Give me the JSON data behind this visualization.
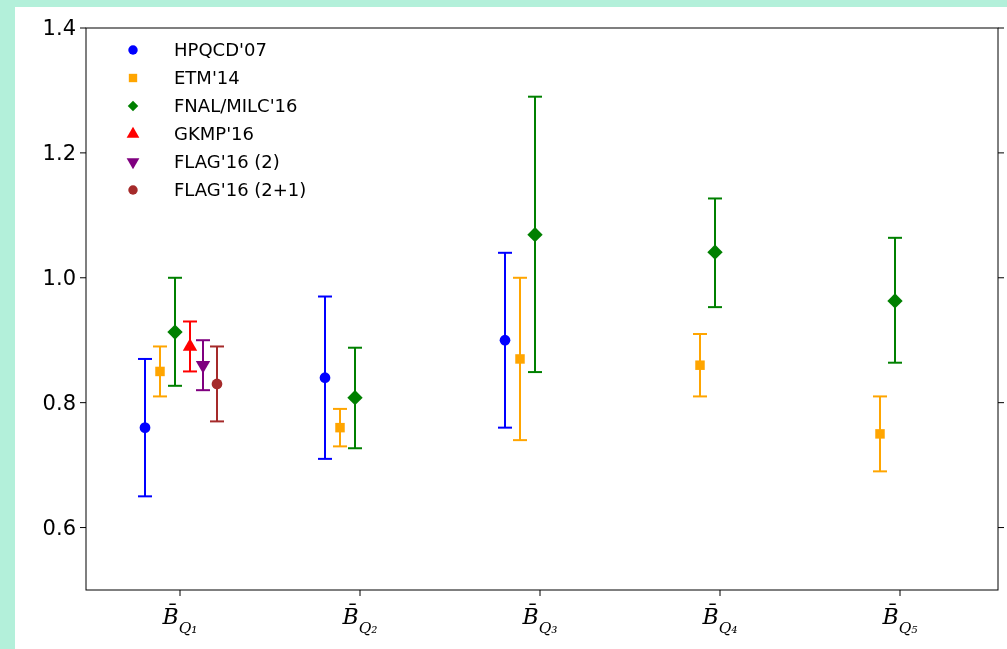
{
  "chart_data": {
    "type": "scatter",
    "categories": [
      "B̄$_{Q₁}$",
      "B̄$_{Q₂}$",
      "B̄$_{Q₃}$",
      "B̄$_{Q₄}$",
      "B̄$_{Q₅}$"
    ],
    "ylim": [
      0.5,
      1.4
    ],
    "yticks": [
      {
        "value": 0.6,
        "label": "0.6"
      },
      {
        "value": 0.8,
        "label": "0.8"
      },
      {
        "value": 1,
        "label": "1.0"
      },
      {
        "value": 1.2,
        "label": "1.2"
      },
      {
        "value": 1.4,
        "label": "1.4"
      }
    ],
    "grid": false,
    "legend": "top left",
    "series": [
      {
        "name": "HPQCD'07",
        "color": "#0000ff",
        "marker": "circle",
        "values": [
          0.76,
          0.84,
          0.9,
          null,
          null
        ],
        "errors": [
          [
            0.65,
            0.87
          ],
          [
            0.71,
            0.97
          ],
          [
            0.76,
            1.04
          ],
          null,
          null
        ]
      },
      {
        "name": "ETM'14",
        "color": "#ffa500",
        "marker": "square",
        "values": [
          0.85,
          0.76,
          0.87,
          0.86,
          0.75
        ],
        "errors": [
          [
            0.81,
            0.89
          ],
          [
            0.73,
            0.79
          ],
          [
            0.74,
            1.0
          ],
          [
            0.81,
            0.91
          ],
          [
            0.69,
            0.81
          ]
        ]
      },
      {
        "name": "FNAL/MILC'16",
        "color": "#008000",
        "marker": "diamond",
        "values": [
          0.913,
          0.808,
          1.069,
          1.041,
          0.963
        ],
        "errors": [
          [
            0.827,
            1.0
          ],
          [
            0.727,
            0.888
          ],
          [
            0.849,
            1.29
          ],
          [
            0.953,
            1.127
          ],
          [
            0.864,
            1.064
          ]
        ]
      },
      {
        "name": "GKMP'16",
        "color": "#ff0000",
        "marker": "triangle",
        "values": [
          0.89,
          null,
          null,
          null,
          null
        ],
        "errors": [
          [
            0.85,
            0.93
          ],
          null,
          null,
          null,
          null
        ]
      },
      {
        "name": "FLAG'16 (2)",
        "color": "#800080",
        "marker": "triangle-down",
        "values": [
          0.86,
          null,
          null,
          null,
          null
        ],
        "errors": [
          [
            0.82,
            0.9
          ],
          null,
          null,
          null,
          null
        ]
      },
      {
        "name": "FLAG'16 (2+1)",
        "color": "#a52a2a",
        "marker": "circle",
        "values": [
          0.83,
          null,
          null,
          null,
          null
        ],
        "errors": [
          [
            0.77,
            0.89
          ],
          null,
          null,
          null,
          null
        ]
      }
    ]
  }
}
